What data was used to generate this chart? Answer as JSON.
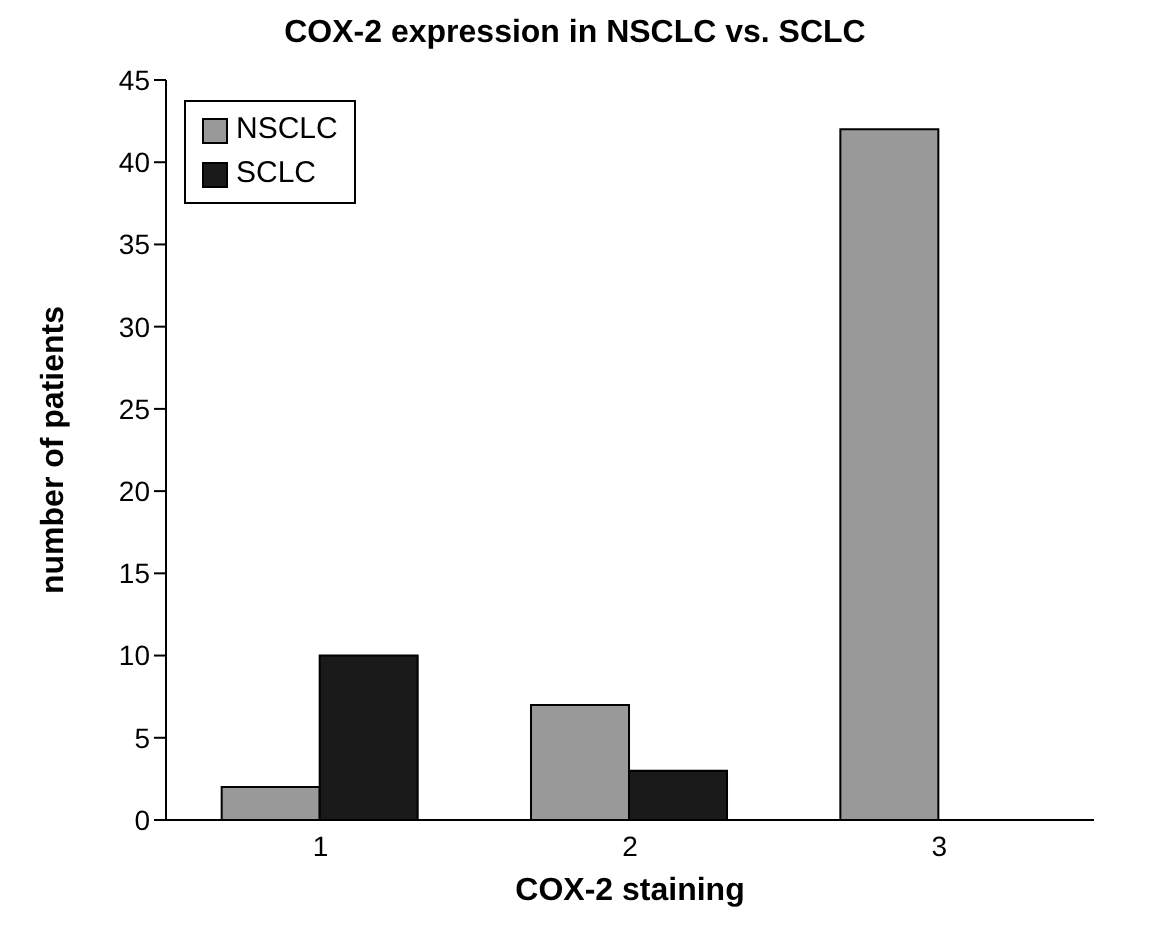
{
  "chart_data": {
    "type": "bar",
    "title": "COX-2 expression in NSCLC vs. SCLC",
    "xlabel": "COX-2 staining",
    "ylabel": "number of patients",
    "categories": [
      "1",
      "2",
      "3"
    ],
    "series": [
      {
        "name": "NSCLC",
        "color": "#999999",
        "values": [
          2,
          7,
          42
        ]
      },
      {
        "name": "SCLC",
        "color": "#1a1a1a",
        "values": [
          10,
          3,
          0
        ]
      }
    ],
    "ylim": [
      0,
      45
    ],
    "yticks": [
      0,
      5,
      10,
      15,
      20,
      25,
      30,
      35,
      40,
      45
    ],
    "grid": false,
    "legend": "top left"
  }
}
